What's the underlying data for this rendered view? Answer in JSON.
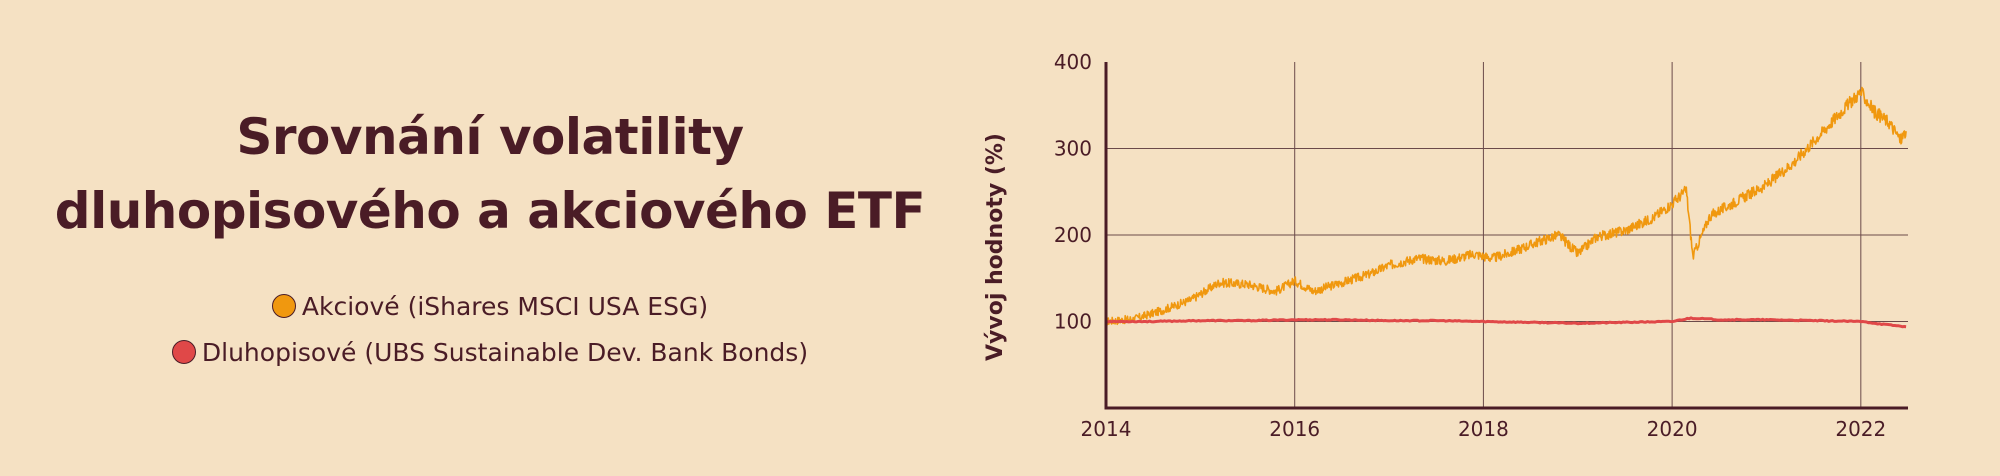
{
  "title": {
    "line1": "Srovnání volatility",
    "line2": "dluhopisového a akciového ETF"
  },
  "legend": [
    {
      "label": "Akciové (iShares MSCI USA ESG)",
      "color": "#f0980f"
    },
    {
      "label": "Dluhopisové (UBS Sustainable Dev. Bank Bonds)",
      "color": "#e04848"
    }
  ],
  "colors": {
    "background": "#f5e1c3",
    "axis": "#4a1c26",
    "grid": "#6b4a4a"
  },
  "chart_data": {
    "type": "line",
    "title": "Srovnání volatility dluhopisového a akciového ETF",
    "xlabel": "",
    "ylabel": "Vývoj hodnoty (%)",
    "xlim": [
      2014.0,
      2022.5
    ],
    "ylim": [
      0,
      400
    ],
    "xticks": [
      "2014",
      "2016",
      "2018",
      "2020",
      "2022"
    ],
    "yticks": [
      "100",
      "200",
      "300",
      "400"
    ],
    "grid": true,
    "series": [
      {
        "name": "Akciové (iShares MSCI USA ESG)",
        "color": "#f0980f",
        "x": [
          2014.0,
          2014.3,
          2014.6,
          2014.9,
          2015.2,
          2015.5,
          2015.8,
          2016.0,
          2016.2,
          2016.5,
          2016.8,
          2017.0,
          2017.3,
          2017.6,
          2017.9,
          2018.1,
          2018.3,
          2018.6,
          2018.8,
          2019.0,
          2019.2,
          2019.5,
          2019.8,
          2020.0,
          2020.15,
          2020.22,
          2020.4,
          2020.7,
          2021.0,
          2021.3,
          2021.6,
          2021.9,
          2022.0,
          2022.15,
          2022.3,
          2022.42,
          2022.48
        ],
        "y": [
          100,
          103,
          113,
          125,
          145,
          143,
          135,
          147,
          135,
          145,
          155,
          165,
          173,
          170,
          178,
          173,
          180,
          193,
          200,
          178,
          198,
          205,
          220,
          236,
          252,
          175,
          222,
          240,
          258,
          285,
          320,
          355,
          365,
          342,
          330,
          310,
          320
        ]
      },
      {
        "name": "Dluhopisové (UBS Sustainable Dev. Bank Bonds)",
        "color": "#e04848",
        "x": [
          2014.0,
          2014.5,
          2015.0,
          2015.5,
          2016.0,
          2016.5,
          2017.0,
          2017.5,
          2018.0,
          2018.5,
          2019.0,
          2019.5,
          2020.0,
          2020.2,
          2020.5,
          2021.0,
          2021.5,
          2022.0,
          2022.3,
          2022.48
        ],
        "y": [
          100,
          100,
          101,
          101,
          102,
          102,
          101,
          101,
          100,
          99,
          98,
          99,
          100,
          104,
          102,
          102,
          101,
          100,
          96,
          94
        ]
      }
    ]
  }
}
